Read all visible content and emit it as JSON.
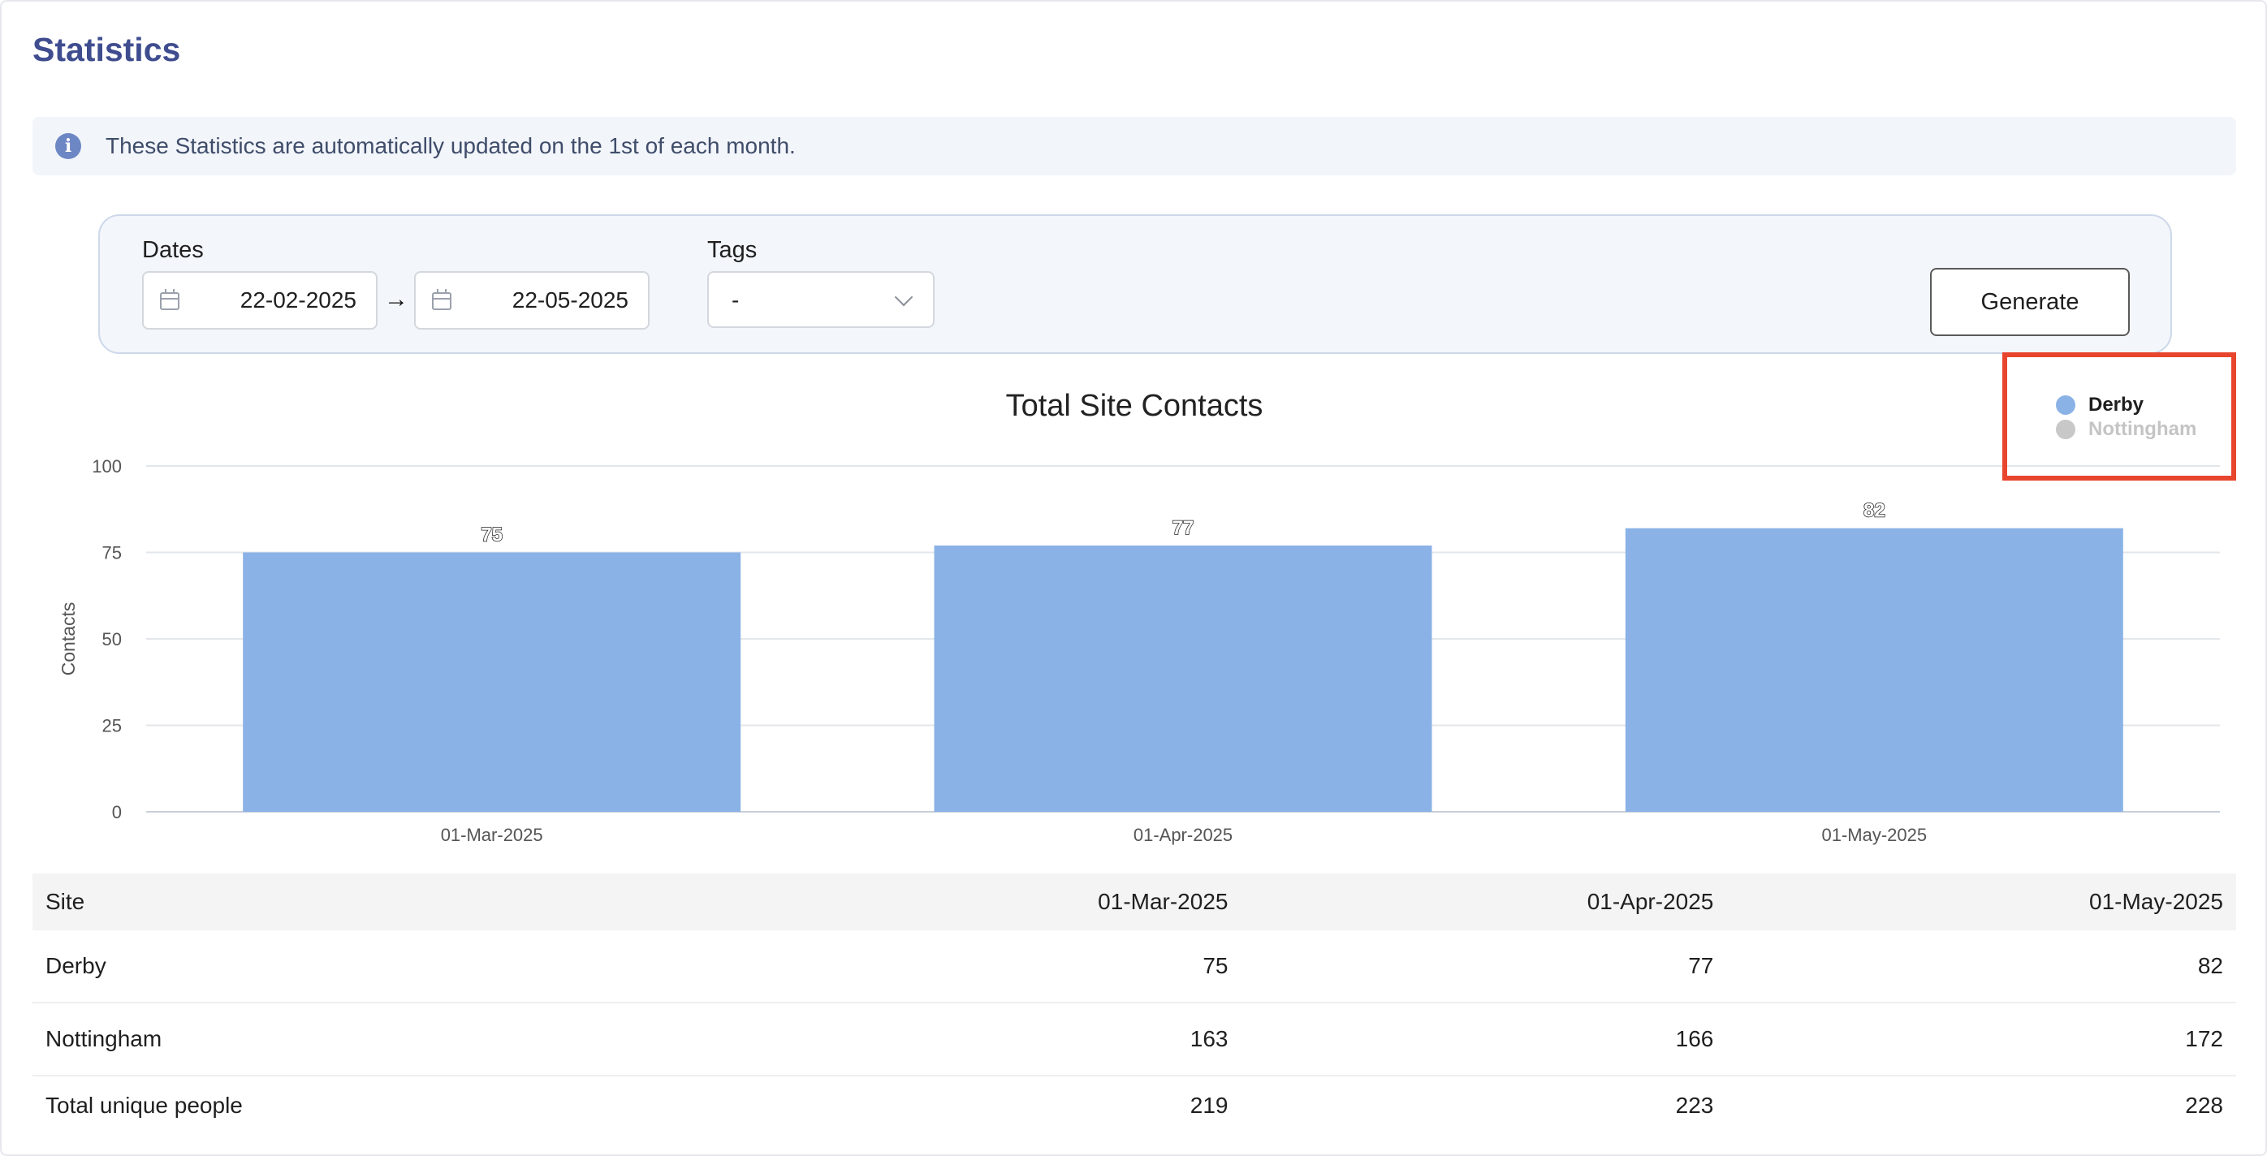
{
  "page": {
    "title": "Statistics",
    "info": "These Statistics are automatically updated on the 1st of each month."
  },
  "filters": {
    "dates_label": "Dates",
    "start_date": "22-02-2025",
    "arrow": "→",
    "end_date": "22-05-2025",
    "tags_label": "Tags",
    "tags_value": "-",
    "generate_label": "Generate"
  },
  "chart_data": {
    "type": "bar",
    "title": "Total Site Contacts",
    "xlabel": "",
    "ylabel": "Contacts",
    "categories": [
      "01-Mar-2025",
      "01-Apr-2025",
      "01-May-2025"
    ],
    "series": [
      {
        "name": "Derby",
        "values": [
          75,
          77,
          82
        ],
        "color": "#8ab2e6",
        "visible": true
      },
      {
        "name": "Nottingham",
        "values": [
          163,
          166,
          172
        ],
        "color": "#c8c8c8",
        "visible": false
      }
    ],
    "ylim": [
      0,
      100
    ],
    "yticks": [
      0,
      25,
      50,
      75,
      100
    ],
    "grid": true,
    "legend_position": "top-right"
  },
  "table": {
    "headers": [
      "Site",
      "01-Mar-2025",
      "01-Apr-2025",
      "01-May-2025"
    ],
    "rows": [
      [
        "Derby",
        "75",
        "77",
        "82"
      ],
      [
        "Nottingham",
        "163",
        "166",
        "172"
      ],
      [
        "Total unique people",
        "219",
        "223",
        "228"
      ]
    ]
  },
  "colors": {
    "accent": "#3f4d8f",
    "highlight": "#e8452f",
    "legend_inactive_text": "#c4c4c4"
  }
}
